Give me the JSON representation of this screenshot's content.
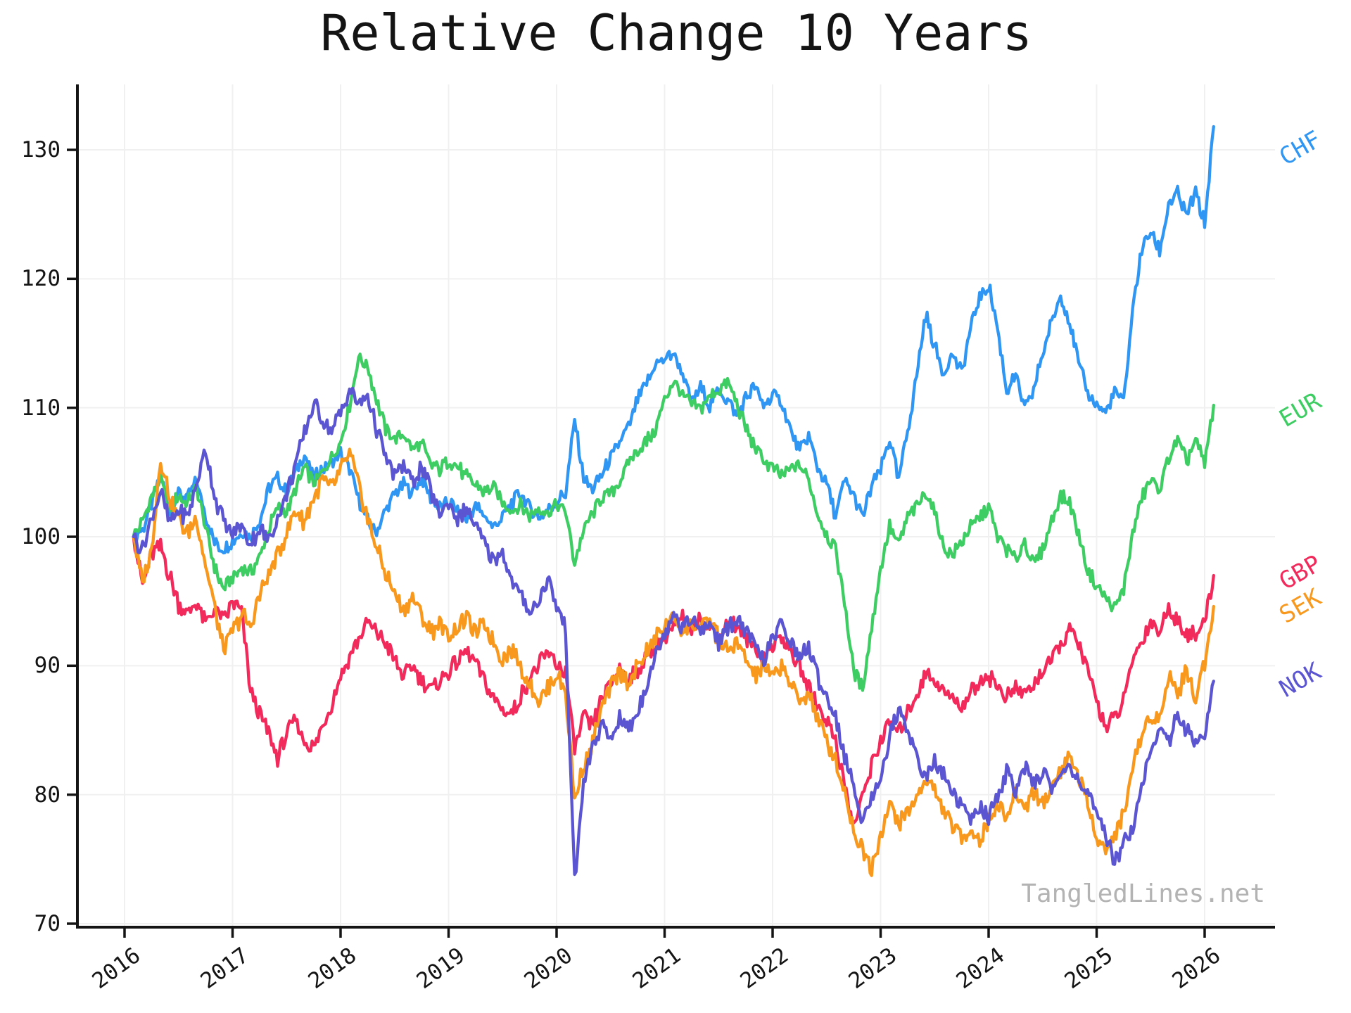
{
  "title": "Relative Change 10 Years",
  "watermark": "TangledLines.net",
  "chart_data": {
    "type": "line",
    "title": "Relative Change 10 Years",
    "xlabel": "",
    "ylabel": "",
    "x_start_decimal_year": 2016.0833,
    "x_step_years": 0.08333,
    "xlim": [
      2015.56,
      2026.65
    ],
    "ylim": [
      70,
      135
    ],
    "y_ticks": [
      70,
      80,
      90,
      100,
      110,
      120,
      130
    ],
    "x_tick_years": [
      2016,
      2017,
      2018,
      2019,
      2020,
      2021,
      2022,
      2023,
      2024,
      2025,
      2026
    ],
    "x_tick_labels": [
      "2016",
      "2017",
      "2018",
      "2019",
      "2020",
      "2021",
      "2022",
      "2023",
      "2024",
      "2025",
      "2026"
    ],
    "grid": true,
    "legend_position": "line-end-annotations-right",
    "series": [
      {
        "name": "CHF",
        "color": "#2f96f3",
        "label_y_value": 130.1,
        "values": [
          100.0,
          100.6,
          102.4,
          104.7,
          102.2,
          103.4,
          103.0,
          104.4,
          101.6,
          99.6,
          99.0,
          99.7,
          100.4,
          100.0,
          101.2,
          103.7,
          104.5,
          103.4,
          105.0,
          106.3,
          104.6,
          105.3,
          105.7,
          106.5,
          105.2,
          103.0,
          101.2,
          100.4,
          102.0,
          103.3,
          104.0,
          103.4,
          104.5,
          103.0,
          102.2,
          102.7,
          102.0,
          101.2,
          102.4,
          101.6,
          100.8,
          101.5,
          102.6,
          103.4,
          102.2,
          101.6,
          102.0,
          102.7,
          103.4,
          109.0,
          104.5,
          103.6,
          104.8,
          106.0,
          107.3,
          108.5,
          110.6,
          111.8,
          113.4,
          113.8,
          114.2,
          112.6,
          110.4,
          111.6,
          110.2,
          111.4,
          110.6,
          109.4,
          110.8,
          111.6,
          110.2,
          111.0,
          110.4,
          108.2,
          106.6,
          107.8,
          105.4,
          104.2,
          101.6,
          104.4,
          103.2,
          101.4,
          104.0,
          105.2,
          107.6,
          104.3,
          108.2,
          112.4,
          117.3,
          114.8,
          112.7,
          114.2,
          112.6,
          116.2,
          118.6,
          119.5,
          116.2,
          111.2,
          112.6,
          109.8,
          111.4,
          114.2,
          116.6,
          118.8,
          116.8,
          113.4,
          111.2,
          110.2,
          109.6,
          111.2,
          110.4,
          117.6,
          122.3,
          123.6,
          122.2,
          125.8,
          126.6,
          124.8,
          126.8,
          124.2,
          131.8
        ]
      },
      {
        "name": "EUR",
        "color": "#3ecd63",
        "label_y_value": 109.8,
        "values": [
          100.0,
          101.2,
          103.0,
          104.5,
          102.0,
          103.2,
          102.6,
          103.8,
          100.8,
          97.6,
          95.9,
          96.8,
          97.6,
          97.2,
          98.4,
          100.6,
          102.2,
          102.0,
          103.6,
          105.4,
          104.2,
          105.0,
          106.2,
          107.4,
          110.2,
          114.0,
          113.2,
          110.6,
          108.4,
          107.6,
          108.0,
          106.8,
          107.2,
          105.6,
          105.2,
          106.0,
          105.4,
          104.6,
          104.0,
          103.4,
          103.8,
          102.6,
          102.0,
          102.4,
          101.6,
          102.2,
          101.8,
          102.4,
          102.0,
          98.0,
          100.5,
          101.8,
          103.0,
          103.4,
          104.2,
          105.8,
          106.6,
          107.4,
          108.2,
          110.6,
          112.2,
          111.0,
          110.2,
          110.0,
          110.8,
          111.4,
          112.0,
          110.4,
          108.5,
          107.0,
          106.0,
          105.2,
          104.8,
          105.2,
          105.6,
          104.4,
          101.8,
          100.2,
          99.0,
          95.0,
          89.5,
          88.4,
          93.0,
          97.5,
          100.8,
          99.3,
          101.5,
          102.4,
          103.6,
          101.9,
          99.2,
          98.6,
          99.6,
          100.7,
          101.5,
          102.4,
          100.0,
          99.0,
          98.2,
          99.6,
          97.8,
          99.0,
          101.2,
          103.2,
          102.6,
          100.2,
          97.4,
          96.2,
          95.2,
          94.4,
          96.0,
          100.2,
          103.0,
          104.4,
          103.6,
          106.2,
          107.4,
          105.8,
          107.6,
          105.6,
          110.2
        ]
      },
      {
        "name": "GBP",
        "color": "#f22a5b",
        "label_y_value": 97.2,
        "values": [
          100.0,
          96.2,
          98.6,
          99.2,
          97.0,
          94.8,
          94.0,
          95.0,
          93.2,
          94.4,
          93.6,
          94.8,
          94.2,
          88.0,
          86.2,
          84.8,
          82.8,
          84.6,
          85.8,
          84.0,
          83.6,
          85.4,
          87.0,
          89.2,
          90.8,
          92.0,
          93.4,
          92.6,
          91.8,
          90.4,
          89.2,
          90.0,
          89.0,
          88.2,
          88.8,
          89.6,
          90.4,
          91.2,
          90.2,
          88.8,
          87.4,
          86.6,
          86.2,
          87.6,
          89.0,
          90.0,
          91.0,
          90.2,
          89.4,
          83.6,
          86.0,
          85.2,
          87.4,
          88.6,
          89.8,
          89.0,
          89.6,
          90.6,
          91.4,
          92.2,
          93.0,
          93.6,
          92.8,
          93.8,
          93.2,
          92.4,
          93.4,
          93.0,
          92.2,
          91.4,
          90.6,
          91.6,
          92.4,
          91.0,
          89.8,
          88.4,
          87.0,
          85.8,
          84.4,
          80.6,
          77.6,
          79.8,
          82.4,
          84.2,
          85.6,
          84.8,
          86.4,
          87.8,
          89.4,
          89.0,
          88.0,
          87.4,
          86.8,
          88.0,
          88.8,
          89.2,
          88.4,
          87.6,
          88.2,
          87.8,
          88.6,
          89.6,
          90.4,
          91.6,
          92.8,
          91.8,
          89.6,
          87.4,
          85.2,
          86.0,
          87.2,
          90.6,
          91.8,
          93.4,
          92.6,
          94.6,
          93.4,
          92.6,
          92.2,
          93.4,
          97.0
        ]
      },
      {
        "name": "SEK",
        "color": "#f8981c",
        "label_y_value": 94.6,
        "values": [
          100.0,
          96.4,
          99.0,
          106.2,
          103.0,
          101.4,
          100.2,
          101.6,
          97.8,
          94.6,
          91.2,
          92.6,
          94.0,
          93.0,
          95.4,
          97.0,
          98.6,
          100.4,
          102.0,
          101.2,
          103.0,
          104.4,
          103.6,
          105.2,
          106.4,
          104.0,
          101.4,
          99.2,
          97.2,
          95.6,
          94.2,
          95.4,
          93.8,
          92.6,
          93.4,
          92.2,
          93.0,
          93.8,
          92.4,
          93.2,
          91.8,
          90.6,
          91.4,
          89.8,
          88.6,
          87.4,
          88.2,
          89.4,
          88.0,
          79.6,
          82.4,
          84.0,
          86.6,
          88.2,
          89.6,
          88.8,
          89.8,
          91.0,
          92.2,
          93.0,
          93.8,
          92.6,
          93.4,
          92.8,
          93.6,
          92.0,
          91.0,
          91.8,
          90.4,
          89.2,
          90.0,
          89.0,
          90.2,
          88.6,
          87.2,
          88.0,
          85.8,
          84.2,
          82.6,
          80.2,
          77.4,
          75.8,
          74.4,
          77.0,
          79.2,
          77.8,
          78.6,
          79.8,
          81.2,
          80.4,
          78.8,
          77.6,
          76.6,
          77.4,
          76.4,
          78.0,
          79.4,
          78.2,
          80.0,
          79.0,
          80.2,
          79.2,
          80.6,
          82.0,
          83.0,
          81.4,
          79.2,
          77.0,
          75.6,
          76.8,
          78.4,
          82.2,
          84.6,
          86.4,
          85.6,
          89.4,
          87.8,
          89.6,
          87.6,
          90.4,
          94.6
        ]
      },
      {
        "name": "NOK",
        "color": "#5b55d1",
        "label_y_value": 88.9,
        "values": [
          100.0,
          99.0,
          101.4,
          103.5,
          101.0,
          102.2,
          101.4,
          104.0,
          106.8,
          103.2,
          101.2,
          100.2,
          100.8,
          99.4,
          100.6,
          99.8,
          101.4,
          103.2,
          105.6,
          108.0,
          110.4,
          109.2,
          108.2,
          109.6,
          111.4,
          110.2,
          111.0,
          108.4,
          106.2,
          104.8,
          105.6,
          104.2,
          105.4,
          103.6,
          101.8,
          102.6,
          101.4,
          102.2,
          100.8,
          99.4,
          98.2,
          98.8,
          96.6,
          95.4,
          94.2,
          95.0,
          96.8,
          94.6,
          93.0,
          73.2,
          81.0,
          83.6,
          85.4,
          84.2,
          86.0,
          85.0,
          86.4,
          88.6,
          90.8,
          92.6,
          94.2,
          93.0,
          93.8,
          92.4,
          93.4,
          91.8,
          92.8,
          93.6,
          92.6,
          91.6,
          90.4,
          92.0,
          93.2,
          92.0,
          90.6,
          91.4,
          89.2,
          87.6,
          86.0,
          83.0,
          80.4,
          78.2,
          79.6,
          81.4,
          84.6,
          86.6,
          85.2,
          83.0,
          81.2,
          82.6,
          81.6,
          80.2,
          79.0,
          78.0,
          79.2,
          78.4,
          80.0,
          81.6,
          80.4,
          82.0,
          80.8,
          81.8,
          80.6,
          81.4,
          82.4,
          81.2,
          80.0,
          78.4,
          76.8,
          75.0,
          76.2,
          77.6,
          80.8,
          83.4,
          85.0,
          84.2,
          86.2,
          85.0,
          84.0,
          84.8,
          88.8
        ]
      }
    ]
  },
  "style": {
    "axis_color": "#141414",
    "grid_color": "#f0f0f0",
    "tick_label_color": "#141414",
    "watermark_color": "#b3b3b3",
    "background": "#ffffff"
  }
}
